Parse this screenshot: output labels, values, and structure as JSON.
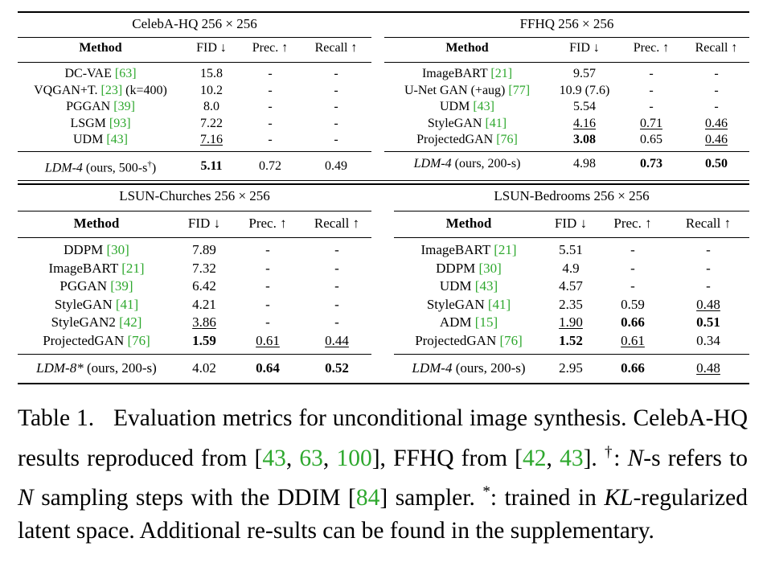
{
  "headers": {
    "method": "Method",
    "fid": "FID ↓",
    "prec": "Prec. ↑",
    "recall": "Recall ↑"
  },
  "tables": [
    {
      "title": "CelebA-HQ 256 × 256",
      "rows": [
        {
          "m": "DC-VAE ",
          "c": "[63]",
          "x": "",
          "fid": "15.8",
          "prec": "-",
          "recall": "-"
        },
        {
          "m": "VQGAN+T. ",
          "c": "[23]",
          "x": " (k=400)",
          "fid": "10.2",
          "prec": "-",
          "recall": "-"
        },
        {
          "m": "PGGAN ",
          "c": "[39]",
          "x": "",
          "fid": "8.0",
          "prec": "-",
          "recall": "-"
        },
        {
          "m": "LSGM ",
          "c": "[93]",
          "x": "",
          "fid": "7.22",
          "prec": "-",
          "recall": "-"
        },
        {
          "m": "UDM ",
          "c": "[43]",
          "x": "",
          "fid": "7.16",
          "prec": "-",
          "recall": "-"
        }
      ],
      "ours": {
        "m": "LDM-4",
        "x": " (ours, 500-s",
        "sup": "†",
        "end": ")",
        "fid": "5.11",
        "prec": "0.72",
        "recall": "0.49"
      }
    },
    {
      "title": "FFHQ 256 × 256",
      "rows": [
        {
          "m": "ImageBART ",
          "c": "[21]",
          "x": "",
          "fid": "9.57",
          "prec": "-",
          "recall": "-"
        },
        {
          "m": "U-Net GAN (+aug) ",
          "c": "[77]",
          "x": "",
          "fid": "10.9 (7.6)",
          "prec": "-",
          "recall": "-"
        },
        {
          "m": "UDM ",
          "c": "[43]",
          "x": "",
          "fid": "5.54",
          "prec": "-",
          "recall": "-"
        },
        {
          "m": "StyleGAN ",
          "c": "[41]",
          "x": "",
          "fid": "4.16",
          "prec": "0.71",
          "recall": "0.46"
        },
        {
          "m": "ProjectedGAN ",
          "c": "[76]",
          "x": "",
          "fid": "3.08",
          "prec": "0.65",
          "recall": "0.46"
        }
      ],
      "ours": {
        "m": "LDM-4",
        "x": " (ours, 200-s)",
        "sup": "",
        "end": "",
        "fid": "4.98",
        "prec": "0.73",
        "recall": "0.50"
      }
    },
    {
      "title": "LSUN-Churches 256 × 256",
      "rows": [
        {
          "m": "DDPM ",
          "c": "[30]",
          "x": "",
          "fid": "7.89",
          "prec": "-",
          "recall": "-"
        },
        {
          "m": "ImageBART ",
          "c": "[21]",
          "x": "",
          "fid": "7.32",
          "prec": "-",
          "recall": "-"
        },
        {
          "m": "PGGAN ",
          "c": "[39]",
          "x": "",
          "fid": "6.42",
          "prec": "-",
          "recall": "-"
        },
        {
          "m": "StyleGAN ",
          "c": "[41]",
          "x": "",
          "fid": "4.21",
          "prec": "-",
          "recall": "-"
        },
        {
          "m": "StyleGAN2 ",
          "c": "[42]",
          "x": "",
          "fid": "3.86",
          "prec": "-",
          "recall": "-"
        },
        {
          "m": "ProjectedGAN ",
          "c": "[76]",
          "x": "",
          "fid": "1.59",
          "prec": "0.61",
          "recall": "0.44"
        }
      ],
      "ours": {
        "m": "LDM-8*",
        "x": " (ours, 200-s)",
        "sup": "",
        "end": "",
        "fid": "4.02",
        "prec": "0.64",
        "recall": "0.52"
      }
    },
    {
      "title": "LSUN-Bedrooms 256 × 256",
      "rows": [
        {
          "m": "ImageBART ",
          "c": "[21]",
          "x": "",
          "fid": "5.51",
          "prec": "-",
          "recall": "-"
        },
        {
          "m": "DDPM ",
          "c": "[30]",
          "x": "",
          "fid": "4.9",
          "prec": "-",
          "recall": "-"
        },
        {
          "m": "UDM ",
          "c": "[43]",
          "x": "",
          "fid": "4.57",
          "prec": "-",
          "recall": "-"
        },
        {
          "m": "StyleGAN ",
          "c": "[41]",
          "x": "",
          "fid": "2.35",
          "prec": "0.59",
          "recall": "0.48"
        },
        {
          "m": "ADM ",
          "c": "[15]",
          "x": "",
          "fid": "1.90",
          "prec": "0.66",
          "recall": "0.51"
        },
        {
          "m": "ProjectedGAN ",
          "c": "[76]",
          "x": "",
          "fid": "1.52",
          "prec": "0.61",
          "recall": "0.34"
        }
      ],
      "ours": {
        "m": "LDM-4",
        "x": " (ours, 200-s)",
        "sup": "",
        "end": "",
        "fid": "2.95",
        "prec": "0.66",
        "recall": "0.48"
      }
    }
  ],
  "caption": {
    "label": "Table 1.",
    "t1": "Evaluation metrics for unconditional image synthesis. CelebA-HQ results reproduced from [",
    "c1": "43",
    "sep1": ", ",
    "c2": "63",
    "sep2": ", ",
    "c3": "100",
    "t2": "], FFHQ from [",
    "c4": "42",
    "sep3": ", ",
    "c5": "43",
    "t3": "]. ",
    "dagger": "†",
    "t4": ": ",
    "n1": "N",
    "t5": "-s refers to ",
    "n2": "N",
    "t6": " sampling steps with the DDIM [",
    "c6": "84",
    "t7": "] sampler. ",
    "star": "*",
    "t8": ": trained in ",
    "kl": "KL",
    "t9": "-regularized latent space. Additional re-sults can be found in the supplementary."
  }
}
